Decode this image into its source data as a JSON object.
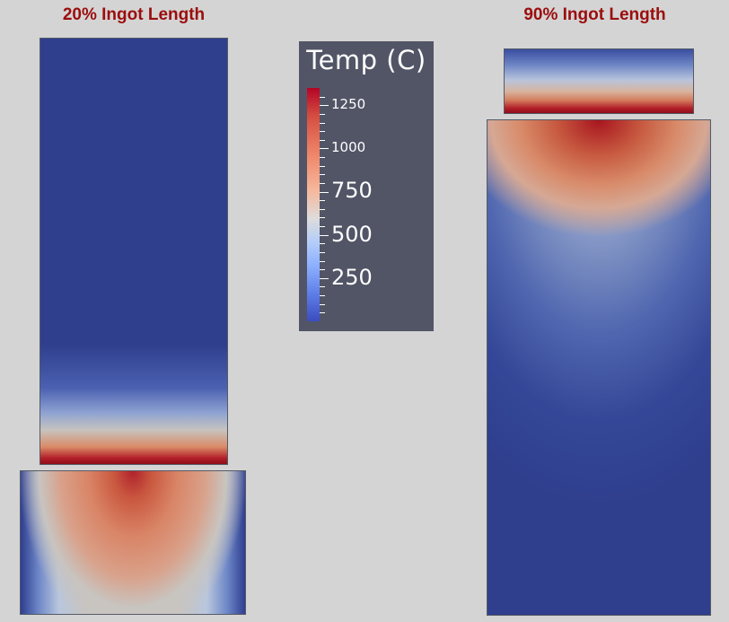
{
  "titles": {
    "left": "20% Ingot Length",
    "right": "90% Ingot Length"
  },
  "legend": {
    "title": "Temp (C)",
    "ticks": [
      {
        "label": "1250",
        "value": 1250
      },
      {
        "label": "1000",
        "value": 1000
      },
      {
        "label": "750",
        "value": 750
      },
      {
        "label": "500",
        "value": 500
      },
      {
        "label": "250",
        "value": 250
      }
    ],
    "range": [
      0,
      1350
    ],
    "colormap": [
      "#3b4cc0",
      "#8db0fe",
      "#dddcdc",
      "#f6b89c",
      "#b40426"
    ]
  }
}
